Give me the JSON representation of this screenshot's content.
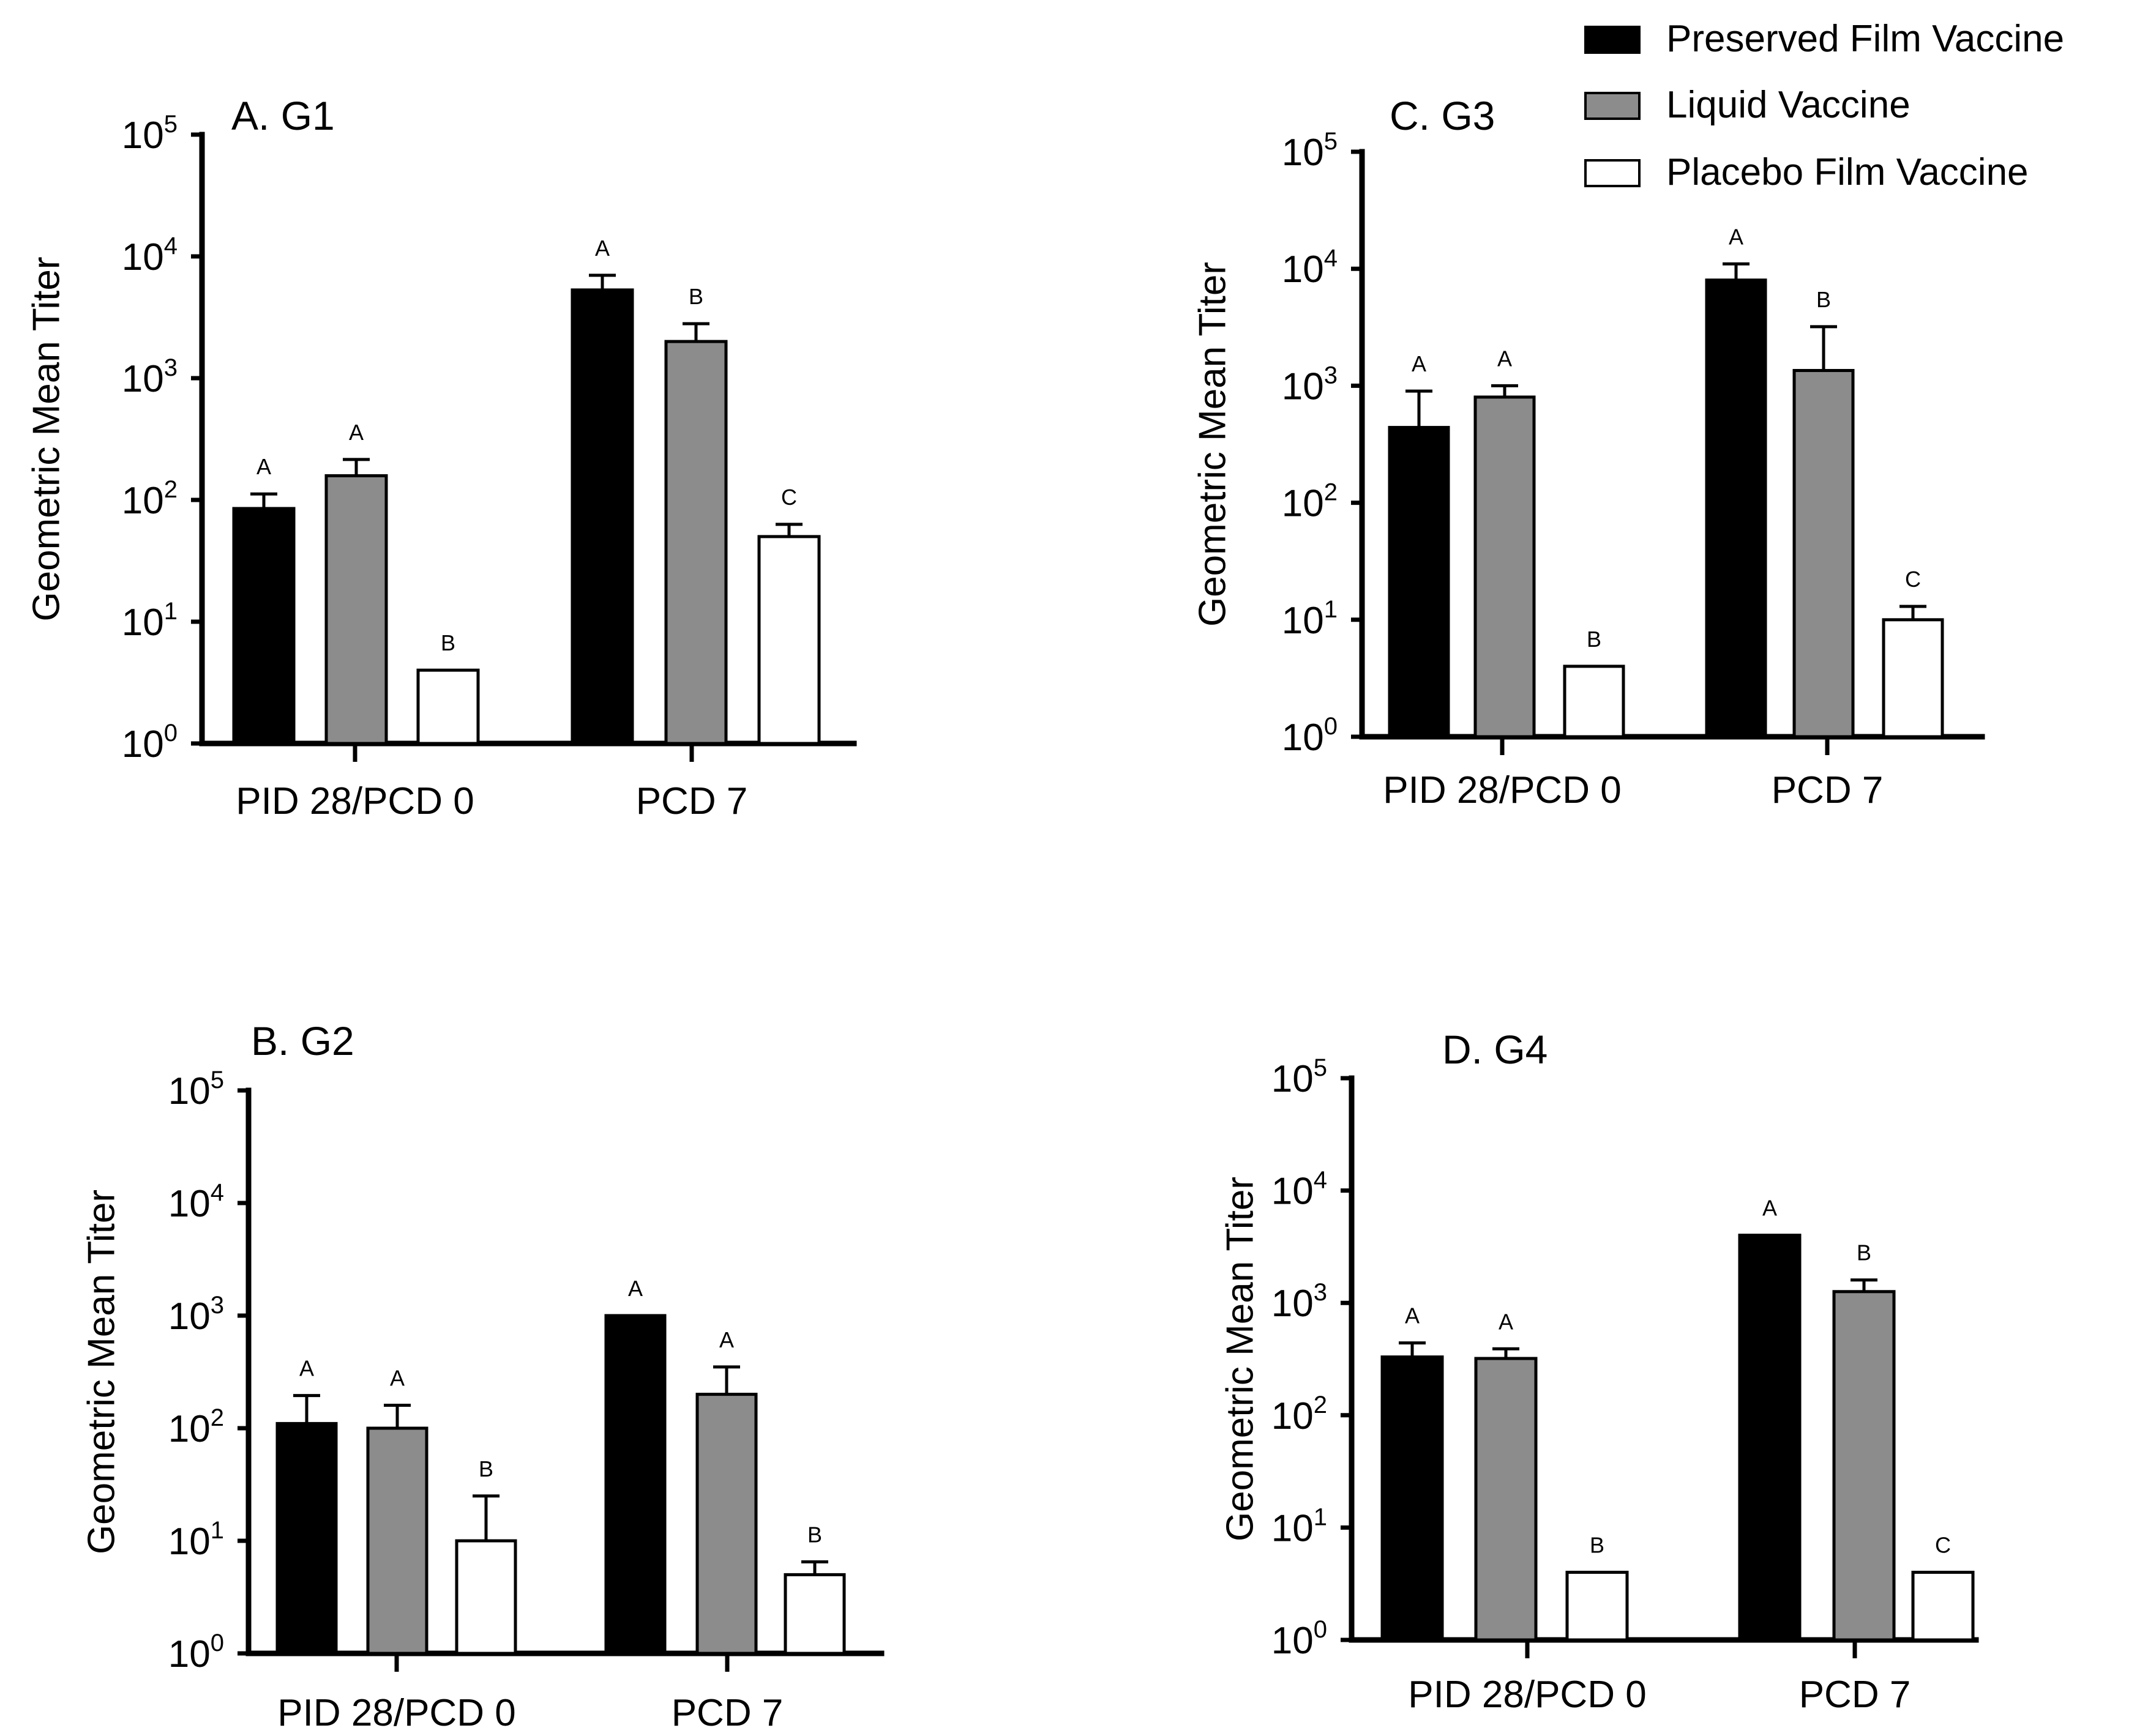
{
  "legend": [
    {
      "label": "Preserved Film Vaccine",
      "color": "#000000"
    },
    {
      "label": "Liquid Vaccine",
      "color": "#8c8c8c"
    },
    {
      "label": "Placebo Film Vaccine",
      "color": "#ffffff"
    }
  ],
  "chart_data": [
    {
      "id": "A",
      "type": "bar",
      "title": "A. G1",
      "ylabel": "Geometric Mean Titer",
      "yscale": "log10",
      "ylim": [
        1,
        100000
      ],
      "yticks": [
        {
          "base": "10",
          "exp": "0"
        },
        {
          "base": "10",
          "exp": "1"
        },
        {
          "base": "10",
          "exp": "2"
        },
        {
          "base": "10",
          "exp": "3"
        },
        {
          "base": "10",
          "exp": "4"
        },
        {
          "base": "10",
          "exp": "5"
        }
      ],
      "categories": [
        "PID 28/PCD 0",
        "PCD 7"
      ],
      "series": [
        {
          "name": "Preserved Film Vaccine",
          "values": [
            85,
            5300
          ],
          "errors": [
            112,
            7000
          ],
          "labels": [
            "A",
            "A"
          ]
        },
        {
          "name": "Liquid Vaccine",
          "values": [
            158,
            2000
          ],
          "errors": [
            215,
            2800
          ],
          "labels": [
            "A",
            "B"
          ]
        },
        {
          "name": "Placebo Film Vaccine",
          "values": [
            4,
            50
          ],
          "errors": [
            null,
            63
          ],
          "labels": [
            "B",
            "C"
          ]
        }
      ]
    },
    {
      "id": "B",
      "type": "bar",
      "title": "B. G2",
      "ylabel": "Geometric Mean Titer",
      "yscale": "log10",
      "ylim": [
        1,
        100000
      ],
      "yticks": [
        {
          "base": "10",
          "exp": "0"
        },
        {
          "base": "10",
          "exp": "1"
        },
        {
          "base": "10",
          "exp": "2"
        },
        {
          "base": "10",
          "exp": "3"
        },
        {
          "base": "10",
          "exp": "4"
        },
        {
          "base": "10",
          "exp": "5"
        }
      ],
      "categories": [
        "PID 28/PCD 0",
        "PCD 7"
      ],
      "series": [
        {
          "name": "Preserved Film Vaccine",
          "values": [
            110,
            1000
          ],
          "errors": [
            195,
            null
          ],
          "labels": [
            "A",
            "A"
          ]
        },
        {
          "name": "Liquid Vaccine",
          "values": [
            100,
            200
          ],
          "errors": [
            160,
            350
          ],
          "labels": [
            "A",
            "A"
          ]
        },
        {
          "name": "Placebo Film Vaccine",
          "values": [
            10,
            5
          ],
          "errors": [
            25,
            6.5
          ],
          "labels": [
            "B",
            "B"
          ]
        }
      ]
    },
    {
      "id": "C",
      "type": "bar",
      "title": "C. G3",
      "ylabel": "Geometric Mean Titer",
      "yscale": "log10",
      "ylim": [
        1,
        100000
      ],
      "yticks": [
        {
          "base": "10",
          "exp": "0"
        },
        {
          "base": "10",
          "exp": "1"
        },
        {
          "base": "10",
          "exp": "2"
        },
        {
          "base": "10",
          "exp": "3"
        },
        {
          "base": "10",
          "exp": "4"
        },
        {
          "base": "10",
          "exp": "5"
        }
      ],
      "categories": [
        "PID 28/PCD 0",
        "PCD 7"
      ],
      "series": [
        {
          "name": "Preserved Film Vaccine",
          "values": [
            440,
            8000
          ],
          "errors": [
            900,
            11000
          ],
          "labels": [
            "A",
            "A"
          ]
        },
        {
          "name": "Liquid Vaccine",
          "values": [
            800,
            1350
          ],
          "errors": [
            1000,
            3200
          ],
          "labels": [
            "A",
            "B"
          ]
        },
        {
          "name": "Placebo Film Vaccine",
          "values": [
            4,
            10
          ],
          "errors": [
            null,
            13
          ],
          "labels": [
            "B",
            "C"
          ]
        }
      ]
    },
    {
      "id": "D",
      "type": "bar",
      "title": "D. G4",
      "ylabel": "Geometric Mean Titer",
      "yscale": "log10",
      "ylim": [
        1,
        100000
      ],
      "yticks": [
        {
          "base": "10",
          "exp": "0"
        },
        {
          "base": "10",
          "exp": "1"
        },
        {
          "base": "10",
          "exp": "2"
        },
        {
          "base": "10",
          "exp": "3"
        },
        {
          "base": "10",
          "exp": "4"
        },
        {
          "base": "10",
          "exp": "5"
        }
      ],
      "categories": [
        "PID 28/PCD 0",
        "PCD 7"
      ],
      "series": [
        {
          "name": "Preserved Film Vaccine",
          "values": [
            330,
            4000
          ],
          "errors": [
            440,
            null
          ],
          "labels": [
            "A",
            "A"
          ]
        },
        {
          "name": "Liquid Vaccine",
          "values": [
            320,
            1260
          ],
          "errors": [
            390,
            1600
          ],
          "labels": [
            "A",
            "B"
          ]
        },
        {
          "name": "Placebo Film Vaccine",
          "values": [
            4,
            4
          ],
          "errors": [
            null,
            null
          ],
          "labels": [
            "B",
            "C"
          ]
        }
      ]
    }
  ]
}
